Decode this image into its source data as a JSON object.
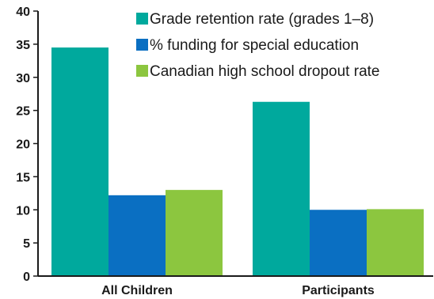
{
  "chart_data": {
    "type": "bar",
    "title": "",
    "xlabel": "",
    "ylabel": "",
    "categories": [
      "All Children",
      "Participants"
    ],
    "series": [
      {
        "name": "Grade retention rate (grades 1–8)",
        "values": [
          34.5,
          26.3
        ],
        "color": "#00a99d"
      },
      {
        "name": "% funding for special education",
        "values": [
          12.2,
          10.0
        ],
        "color": "#0a6fc2"
      },
      {
        "name": "Canadian high school dropout rate",
        "values": [
          13.0,
          10.1
        ],
        "color": "#8cc63f"
      }
    ],
    "ylim": [
      0,
      40
    ],
    "yticks": [
      0,
      5,
      10,
      15,
      20,
      25,
      30,
      35,
      40
    ],
    "grid": false,
    "legend_position": "top-right"
  }
}
